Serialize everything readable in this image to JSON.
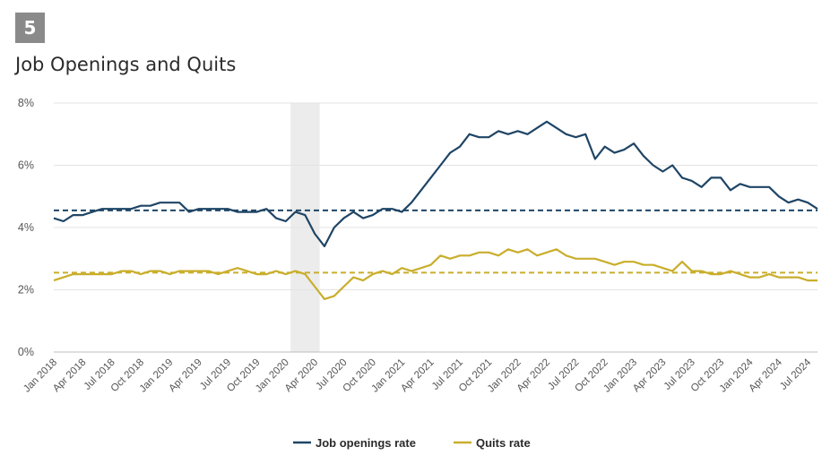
{
  "figure": {
    "number": "5",
    "title": "Job Openings and Quits"
  },
  "colors": {
    "openings": "#1f4565",
    "quits": "#c9ae2c",
    "recession": "#ececec",
    "grid": "#e3e3e3"
  },
  "chart_data": {
    "type": "line",
    "title": "Job Openings and Quits",
    "ylim": [
      0,
      8
    ],
    "y_ticks": [
      0,
      2,
      4,
      6,
      8
    ],
    "y_tick_labels": [
      "0%",
      "2%",
      "4%",
      "6%",
      "8%"
    ],
    "x_tick_labels": [
      "Jan 2018",
      "Apr 2018",
      "Jul 2018",
      "Oct 2018",
      "Jan 2019",
      "Apr 2019",
      "Jul 2019",
      "Oct 2019",
      "Jan 2020",
      "Apr 2020",
      "Jul 2020",
      "Oct 2020",
      "Jan 2021",
      "Apr 2021",
      "Jul 2021",
      "Oct 2021",
      "Jan 2022",
      "Apr 2022",
      "Jul 2022",
      "Oct 2022",
      "Jan 2023",
      "Apr 2023",
      "Jul 2023",
      "Oct 2023",
      "Jan 2024",
      "Apr 2024",
      "Jul 2024"
    ],
    "x_start": "Jan 2018",
    "x_end": "Jul 2024",
    "recession_shading": {
      "start": "Feb 2020",
      "end": "Apr 2020"
    },
    "series": [
      {
        "name": "Job openings rate",
        "average": 4.55,
        "values": [
          4.3,
          4.2,
          4.4,
          4.4,
          4.5,
          4.6,
          4.6,
          4.6,
          4.6,
          4.7,
          4.7,
          4.8,
          4.8,
          4.8,
          4.5,
          4.6,
          4.6,
          4.6,
          4.6,
          4.5,
          4.5,
          4.5,
          4.6,
          4.3,
          4.2,
          4.5,
          4.4,
          3.8,
          3.4,
          4.0,
          4.3,
          4.5,
          4.3,
          4.4,
          4.6,
          4.6,
          4.5,
          4.8,
          5.2,
          5.6,
          6.0,
          6.4,
          6.6,
          7.0,
          6.9,
          6.9,
          7.1,
          7.0,
          7.1,
          7.0,
          7.2,
          7.4,
          7.2,
          7.0,
          6.9,
          7.0,
          6.2,
          6.6,
          6.4,
          6.5,
          6.7,
          6.3,
          6.0,
          5.8,
          6.0,
          5.6,
          5.5,
          5.3,
          5.6,
          5.6,
          5.2,
          5.4,
          5.3,
          5.3,
          5.3,
          5.0,
          4.8,
          4.9,
          4.8,
          4.6
        ]
      },
      {
        "name": "Quits rate",
        "average": 2.55,
        "values": [
          2.3,
          2.4,
          2.5,
          2.5,
          2.5,
          2.5,
          2.5,
          2.6,
          2.6,
          2.5,
          2.6,
          2.6,
          2.5,
          2.6,
          2.6,
          2.6,
          2.6,
          2.5,
          2.6,
          2.7,
          2.6,
          2.5,
          2.5,
          2.6,
          2.5,
          2.6,
          2.5,
          2.1,
          1.7,
          1.8,
          2.1,
          2.4,
          2.3,
          2.5,
          2.6,
          2.5,
          2.7,
          2.6,
          2.7,
          2.8,
          3.1,
          3.0,
          3.1,
          3.1,
          3.2,
          3.2,
          3.1,
          3.3,
          3.2,
          3.3,
          3.1,
          3.2,
          3.3,
          3.1,
          3.0,
          3.0,
          3.0,
          2.9,
          2.8,
          2.9,
          2.9,
          2.8,
          2.8,
          2.7,
          2.6,
          2.9,
          2.6,
          2.6,
          2.5,
          2.5,
          2.6,
          2.5,
          2.4,
          2.4,
          2.5,
          2.4,
          2.4,
          2.4,
          2.3,
          2.3
        ]
      }
    ],
    "legend": {
      "position": "bottom-center",
      "items": [
        "Job openings rate",
        "Quits rate"
      ]
    }
  }
}
